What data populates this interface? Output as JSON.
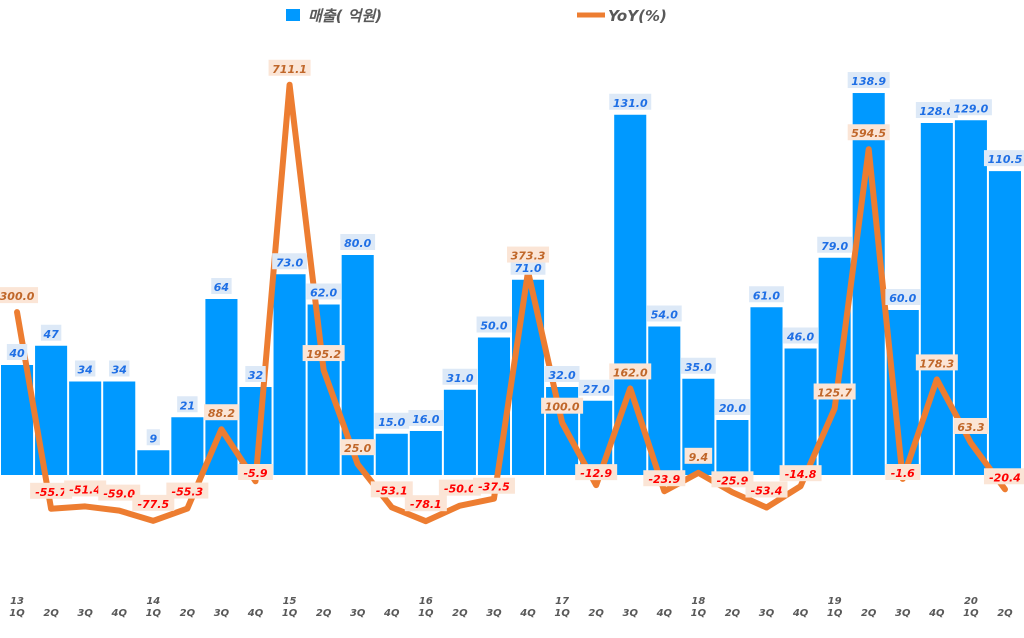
{
  "chart_data": {
    "type": "bar+line",
    "title": "",
    "legend_position": "top",
    "grid": false,
    "year_labels": [
      "13",
      "",
      "",
      "",
      "14",
      "",
      "",
      "",
      "15",
      "",
      "",
      "",
      "16",
      "",
      "",
      "",
      "17",
      "",
      "",
      "",
      "18",
      "",
      "",
      "",
      "19",
      "",
      "",
      "",
      "20",
      ""
    ],
    "quarter_labels": [
      "1Q",
      "2Q",
      "3Q",
      "4Q",
      "1Q",
      "2Q",
      "3Q",
      "4Q",
      "1Q",
      "2Q",
      "3Q",
      "4Q",
      "1Q",
      "2Q",
      "3Q",
      "4Q",
      "1Q",
      "2Q",
      "3Q",
      "4Q",
      "1Q",
      "2Q",
      "3Q",
      "4Q",
      "1Q",
      "2Q",
      "3Q",
      "4Q",
      "1Q",
      "2Q"
    ],
    "series": [
      {
        "name": "매출( 억원)",
        "kind": "bar",
        "color": "#0099ff",
        "values": [
          40,
          47,
          34,
          34,
          9,
          21,
          64,
          32,
          73.0,
          62.0,
          80.0,
          15.0,
          16.0,
          31.0,
          50.0,
          71.0,
          32.0,
          27.0,
          131.0,
          54.0,
          35.0,
          20.0,
          61.0,
          46.0,
          79.0,
          138.9,
          60.0,
          128.0,
          129.0,
          110.5
        ],
        "labels": [
          "40",
          "47",
          "34",
          "34",
          "9",
          "21",
          "64",
          "32",
          "73.0",
          "62.0",
          "80.0",
          "15.0",
          "16.0",
          "31.0",
          "50.0",
          "71.0",
          "32.0",
          "27.0",
          "131.0",
          "54.0",
          "35.0",
          "20.0",
          "61.0",
          "46.0",
          "79.0",
          "138.9",
          "60.0",
          "128.0",
          "129.0",
          "110.5"
        ]
      },
      {
        "name": "YoY(%)",
        "kind": "line",
        "color": "#ed7d31",
        "values": [
          300.0,
          -55.7,
          -51.4,
          -59.0,
          -77.5,
          -55.3,
          88.2,
          -5.9,
          711.1,
          195.2,
          25.0,
          -53.1,
          -78.1,
          -50.0,
          -37.5,
          373.3,
          100.0,
          -12.9,
          162.0,
          -23.9,
          9.4,
          -25.9,
          -53.4,
          -14.8,
          125.7,
          594.5,
          -1.6,
          178.3,
          63.3,
          -20.4
        ],
        "labels": [
          "300.0",
          "-55.7",
          "-51.4",
          "-59.0",
          "-77.5",
          "-55.3",
          "88.2",
          "-5.9",
          "711.1",
          "195.2",
          "25.0",
          "-53.1",
          "-78.1",
          "-50.0",
          "-37.5",
          "373.3",
          "100.0",
          "-12.9",
          "162.0",
          "-23.9",
          "9.4",
          "-25.9",
          "-53.4",
          "-14.8",
          "125.7",
          "594.5",
          "-1.6",
          "178.3",
          "63.3",
          "-20.4"
        ]
      }
    ],
    "colors": {
      "bar_label": "#1f6fe5",
      "bar_label_bg": "#dde9f7",
      "yoy_pos_label": "#c0672a",
      "yoy_neg_label": "#ff0000",
      "yoy_label_bg": "#fbe5d6",
      "axis_text": "#595959"
    }
  }
}
